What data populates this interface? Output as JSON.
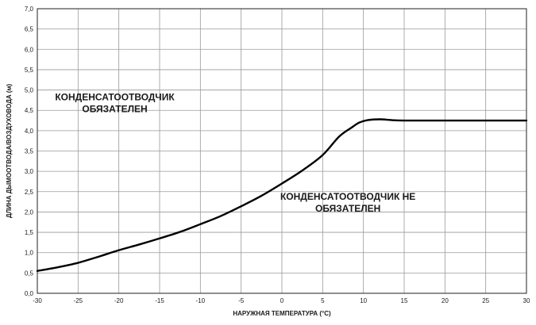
{
  "chart_data": {
    "type": "line",
    "title": "",
    "xlabel": "НАРУЖНАЯ ТЕМПЕРАТУРА (°C)",
    "ylabel": "ДЛИНА ДЫМООТВОДА/ВОЗДУХОВОДА (м)",
    "xlim": [
      -30,
      30
    ],
    "ylim": [
      0,
      7
    ],
    "grid": true,
    "x_ticks": [
      -30,
      -25,
      -20,
      -15,
      -10,
      -5,
      0,
      5,
      10,
      15,
      20,
      25,
      30
    ],
    "x_tick_labels": [
      "-30",
      "-25",
      "-20",
      "-15",
      "-10",
      "-5",
      "0",
      "5",
      "10",
      "15",
      "20",
      "25",
      "30"
    ],
    "y_ticks": [
      0,
      0.5,
      1,
      1.5,
      2,
      2.5,
      3,
      3.5,
      4,
      4.5,
      5,
      5.5,
      6,
      6.5,
      7
    ],
    "y_tick_labels": [
      "0,0",
      "0,5",
      "1,0",
      "1,5",
      "2,0",
      "2,5",
      "3,0",
      "3,5",
      "4,0",
      "4,5",
      "5,0",
      "5,5",
      "6,0",
      "6,5",
      "7,0"
    ],
    "series": [
      {
        "name": "",
        "color": "#000000",
        "x": [
          -30,
          -27.5,
          -25,
          -22.5,
          -20,
          -17.5,
          -15,
          -12.5,
          -10,
          -7.5,
          -5,
          -2.5,
          0,
          2.5,
          5,
          7,
          8.5,
          9.5,
          10.5,
          12,
          13.5,
          15,
          20,
          25,
          30
        ],
        "y": [
          0.55,
          0.64,
          0.75,
          0.9,
          1.06,
          1.2,
          1.35,
          1.51,
          1.7,
          1.9,
          2.14,
          2.4,
          2.7,
          3.02,
          3.4,
          3.85,
          4.07,
          4.2,
          4.26,
          4.28,
          4.26,
          4.25,
          4.25,
          4.25,
          4.25
        ]
      }
    ],
    "annotations": [
      {
        "line1": "КОНДЕНСАТООТВОДЧИК",
        "line2": "ОБЯЗАТЕЛЕН",
        "x": -20.5,
        "y": 4.75
      },
      {
        "line1": "КОНДЕНСАТООТВОДЧИК НЕ",
        "line2": "ОБЯЗАТЕЛЕН",
        "x": 8.1,
        "y": 2.3
      }
    ]
  }
}
